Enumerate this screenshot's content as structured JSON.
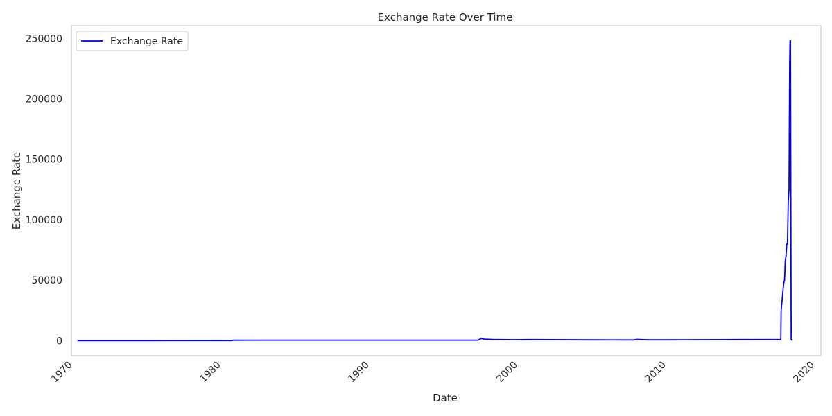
{
  "chart_data": {
    "type": "line",
    "title": "Exchange Rate Over Time",
    "xlabel": "Date",
    "ylabel": "Exchange Rate",
    "xlim": [
      1970.1,
      2020.6
    ],
    "ylim": [
      -12400,
      260500
    ],
    "x_ticks": [
      {
        "value": 1970,
        "label": "1970"
      },
      {
        "value": 1980,
        "label": "1980"
      },
      {
        "value": 1990,
        "label": "1990"
      },
      {
        "value": 2000,
        "label": "2000"
      },
      {
        "value": 2010,
        "label": "2010"
      },
      {
        "value": 2020,
        "label": "2020"
      }
    ],
    "y_ticks": [
      {
        "value": 0,
        "label": "0"
      },
      {
        "value": 50000,
        "label": "50000"
      },
      {
        "value": 100000,
        "label": "100000"
      },
      {
        "value": 150000,
        "label": "150000"
      },
      {
        "value": 200000,
        "label": "200000"
      },
      {
        "value": 250000,
        "label": "250000"
      }
    ],
    "grid": false,
    "legend_position": "top-left",
    "series": [
      {
        "name": "Exchange Rate",
        "color": "#0000ff",
        "x": [
          1970.5,
          1975.0,
          1980.9,
          1981.0,
          1985.0,
          1990.0,
          1995.0,
          1997.5,
          1997.7,
          1997.9,
          1998.5,
          2000.0,
          2001.0,
          2005.0,
          2008.0,
          2008.2,
          2008.5,
          2009.0,
          2010.0,
          2015.0,
          2017.9,
          2017.92,
          2018.0,
          2018.05,
          2018.1,
          2018.15,
          2018.2,
          2018.25,
          2018.3,
          2018.35,
          2018.4,
          2018.45,
          2018.5,
          2018.52,
          2018.55,
          2018.57,
          2018.59,
          2018.6,
          2018.62,
          2018.65,
          2018.7
        ],
        "y": [
          20,
          30,
          80,
          400,
          420,
          430,
          450,
          460,
          1800,
          1300,
          1000,
          800,
          900,
          700,
          600,
          1100,
          900,
          700,
          700,
          900,
          1000,
          25000,
          35000,
          42000,
          48000,
          50000,
          66000,
          70000,
          80000,
          80000,
          115000,
          125000,
          230000,
          248000,
          248000,
          150000,
          30000,
          1000,
          500,
          700,
          600
        ]
      }
    ]
  }
}
